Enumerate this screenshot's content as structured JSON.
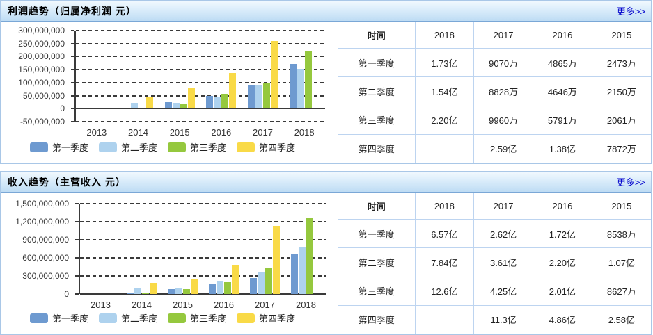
{
  "panels": [
    {
      "id": "profit",
      "title": "利润趋势（归属净利润 元）",
      "more_label": "更多>>",
      "more_color": "#0000cc",
      "chart_data": {
        "type": "bar",
        "title": "利润趋势（归属净利润 元）",
        "categories": [
          "2013",
          "2014",
          "2015",
          "2016",
          "2017",
          "2018"
        ],
        "series": [
          {
            "name": "第一季度",
            "color": "#6e9ad0",
            "values": [
              null,
              3000000,
              24730000,
              48650000,
              90700000,
              173000000
            ]
          },
          {
            "name": "第二季度",
            "color": "#aed2ee",
            "values": [
              null,
              22000000,
              21500000,
              46460000,
              88280000,
              154000000
            ]
          },
          {
            "name": "第三季度",
            "color": "#95c83e",
            "values": [
              null,
              3000000,
              20610000,
              57910000,
              99600000,
              220000000
            ]
          },
          {
            "name": "第四季度",
            "color": "#f9da47",
            "values": [
              null,
              45000000,
              78720000,
              138000000,
              259000000,
              null
            ]
          }
        ],
        "ylim": [
          -50000000,
          300000000
        ],
        "yticks": [
          300000000,
          250000000,
          200000000,
          150000000,
          100000000,
          50000000,
          0,
          -50000000
        ],
        "grid": "dashed-horizontal",
        "legend_position": "bottom",
        "xlabel": "",
        "ylabel": ""
      },
      "table": {
        "headers": [
          "时间",
          "2018",
          "2017",
          "2016",
          "2015"
        ],
        "rows": [
          [
            "第一季度",
            "1.73亿",
            "9070万",
            "4865万",
            "2473万"
          ],
          [
            "第二季度",
            "1.54亿",
            "8828万",
            "4646万",
            "2150万"
          ],
          [
            "第三季度",
            "2.20亿",
            "9960万",
            "5791万",
            "2061万"
          ],
          [
            "第四季度",
            "",
            "2.59亿",
            "1.38亿",
            "7872万"
          ]
        ]
      }
    },
    {
      "id": "revenue",
      "title": "收入趋势（主营收入 元）",
      "more_label": "更多>>",
      "more_color": "#0000cc",
      "chart_data": {
        "type": "bar",
        "title": "收入趋势（主营收入 元）",
        "categories": [
          "2013",
          "2014",
          "2015",
          "2016",
          "2017",
          "2018"
        ],
        "series": [
          {
            "name": "第一季度",
            "color": "#6e9ad0",
            "values": [
              null,
              20000000,
              85380000,
              172000000,
              262000000,
              657000000
            ]
          },
          {
            "name": "第二季度",
            "color": "#aed2ee",
            "values": [
              null,
              95000000,
              107000000,
              220000000,
              361000000,
              784000000
            ]
          },
          {
            "name": "第三季度",
            "color": "#95c83e",
            "values": [
              null,
              15000000,
              86270000,
              201000000,
              425000000,
              1260000000
            ]
          },
          {
            "name": "第四季度",
            "color": "#f9da47",
            "values": [
              null,
              190000000,
              258000000,
              486000000,
              1130000000,
              null
            ]
          }
        ],
        "ylim": [
          0,
          1500000000
        ],
        "yticks": [
          1500000000,
          1200000000,
          900000000,
          600000000,
          300000000,
          0
        ],
        "grid": "dashed-horizontal",
        "legend_position": "bottom",
        "xlabel": "",
        "ylabel": ""
      },
      "table": {
        "headers": [
          "时间",
          "2018",
          "2017",
          "2016",
          "2015"
        ],
        "rows": [
          [
            "第一季度",
            "6.57亿",
            "2.62亿",
            "1.72亿",
            "8538万"
          ],
          [
            "第二季度",
            "7.84亿",
            "3.61亿",
            "2.20亿",
            "1.07亿"
          ],
          [
            "第三季度",
            "12.6亿",
            "4.25亿",
            "2.01亿",
            "8627万"
          ],
          [
            "第四季度",
            "",
            "11.3亿",
            "4.86亿",
            "2.58亿"
          ]
        ]
      }
    }
  ]
}
